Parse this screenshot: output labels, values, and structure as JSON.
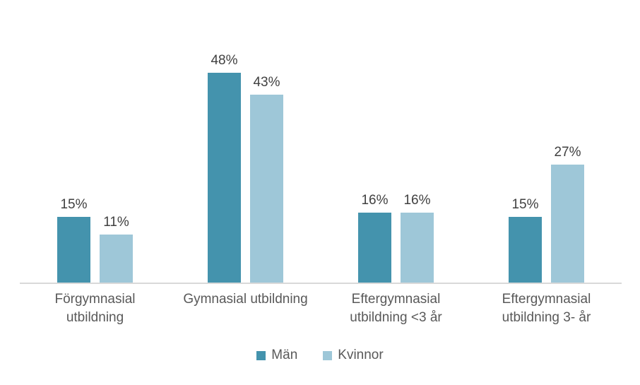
{
  "chart_data": {
    "type": "bar",
    "title": "",
    "categories": [
      "Förgymnasial utbildning",
      "Gymnasial utbildning",
      "Eftergymnasial utbildning <3 år",
      "Eftergymnasial utbildning 3- år"
    ],
    "category_display": [
      "Förgymnasial\nutbildning",
      "Gymnasial utbildning",
      "Eftergymnasial\nutbildning <3 år",
      "Eftergymnasial\nutbildning 3- år"
    ],
    "series": [
      {
        "name": "Män",
        "color": "#4493ad",
        "values": [
          15,
          48,
          16,
          15
        ]
      },
      {
        "name": "Kvinnor",
        "color": "#9ec7d8",
        "values": [
          11,
          43,
          16,
          27
        ]
      }
    ],
    "data_label_format": "percent",
    "data_labels": [
      [
        "15%",
        "48%",
        "16%",
        "15%"
      ],
      [
        "11%",
        "43%",
        "16%",
        "27%"
      ]
    ],
    "xlabel": "",
    "ylabel": "",
    "ylim": [
      0,
      55
    ],
    "grid": false,
    "y_axis_visible": false,
    "legend_position": "bottom",
    "axis_line_color": "#d9d9d9",
    "value_label_color": "#404040",
    "category_label_color": "#595959"
  }
}
